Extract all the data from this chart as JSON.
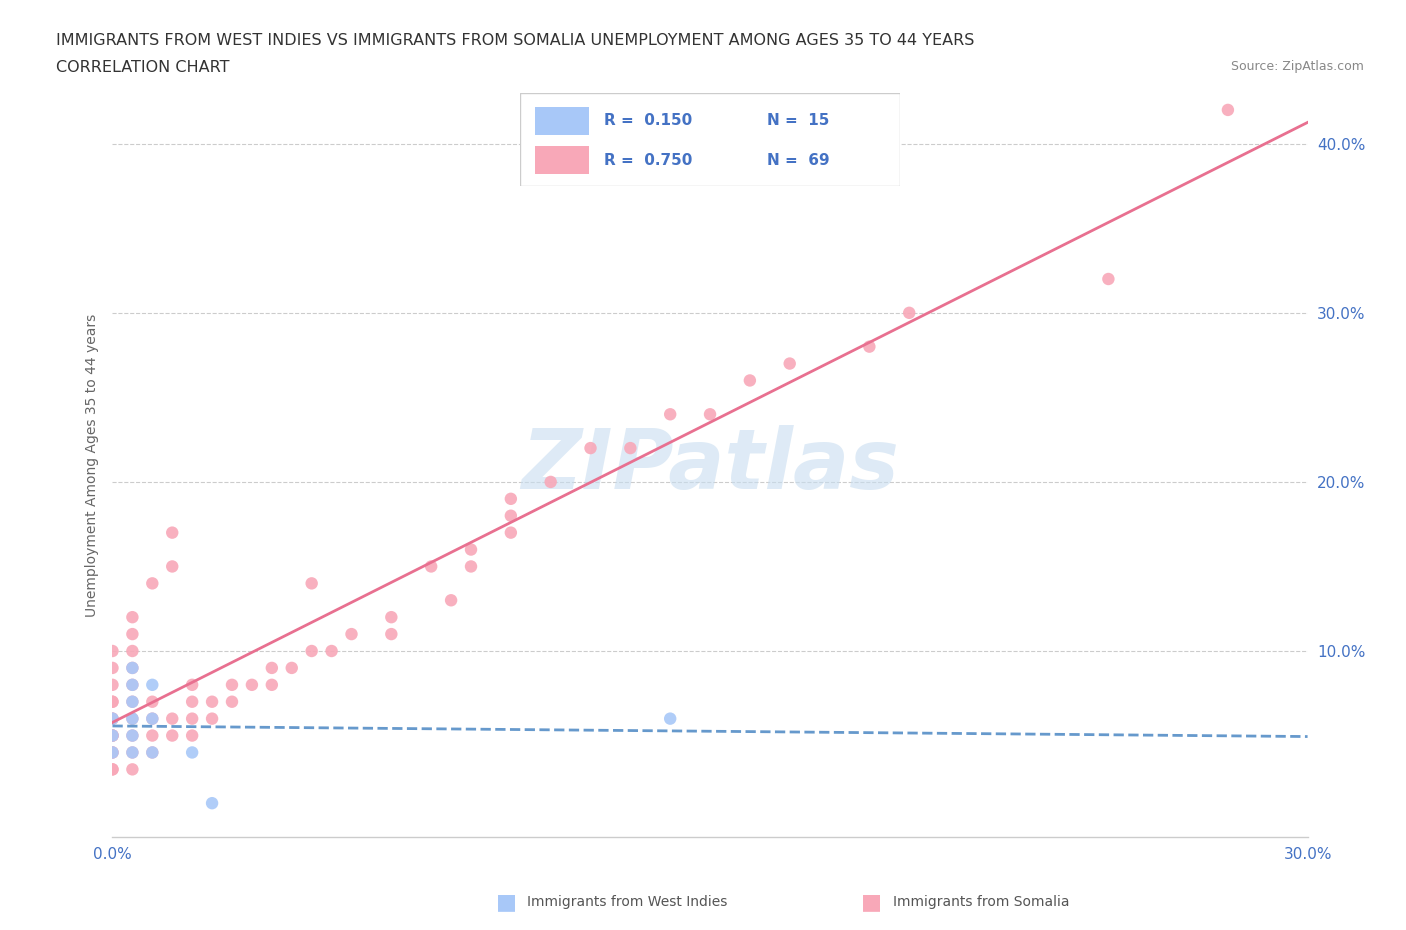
{
  "title_line1": "IMMIGRANTS FROM WEST INDIES VS IMMIGRANTS FROM SOMALIA UNEMPLOYMENT AMONG AGES 35 TO 44 YEARS",
  "title_line2": "CORRELATION CHART",
  "source_text": "Source: ZipAtlas.com",
  "ylabel": "Unemployment Among Ages 35 to 44 years",
  "xlim": [
    0.0,
    0.3
  ],
  "ylim": [
    -0.01,
    0.43
  ],
  "yticks": [
    0.0,
    0.1,
    0.2,
    0.3,
    0.4
  ],
  "ytick_labels": [
    "",
    "10.0%",
    "20.0%",
    "30.0%",
    "40.0%"
  ],
  "xticks": [
    0.0,
    0.05,
    0.1,
    0.15,
    0.2,
    0.25,
    0.3
  ],
  "xtick_labels": [
    "0.0%",
    "",
    "",
    "",
    "",
    "",
    "30.0%"
  ],
  "color_west_indies": "#a8c8f8",
  "color_somalia": "#f8a8b8",
  "color_line_west_indies": "#6699cc",
  "color_line_somalia": "#e87090",
  "legend_r_west": "0.150",
  "legend_n_west": "15",
  "legend_r_somalia": "0.750",
  "legend_n_somalia": "69",
  "watermark": "ZIPatlas",
  "watermark_color": "#c8ddf0",
  "west_indies_x": [
    0.0,
    0.0,
    0.0,
    0.005,
    0.005,
    0.005,
    0.005,
    0.005,
    0.005,
    0.01,
    0.01,
    0.01,
    0.02,
    0.025,
    0.14
  ],
  "west_indies_y": [
    0.04,
    0.05,
    0.06,
    0.04,
    0.05,
    0.06,
    0.07,
    0.08,
    0.09,
    0.04,
    0.06,
    0.08,
    0.04,
    0.01,
    0.06
  ],
  "somalia_x": [
    0.0,
    0.0,
    0.0,
    0.0,
    0.0,
    0.0,
    0.0,
    0.0,
    0.0,
    0.0,
    0.0,
    0.0,
    0.0,
    0.0,
    0.005,
    0.005,
    0.005,
    0.005,
    0.005,
    0.005,
    0.005,
    0.005,
    0.005,
    0.005,
    0.01,
    0.01,
    0.01,
    0.01,
    0.01,
    0.015,
    0.015,
    0.015,
    0.015,
    0.02,
    0.02,
    0.02,
    0.02,
    0.025,
    0.025,
    0.03,
    0.03,
    0.035,
    0.04,
    0.04,
    0.045,
    0.05,
    0.05,
    0.055,
    0.06,
    0.07,
    0.07,
    0.08,
    0.085,
    0.09,
    0.09,
    0.1,
    0.1,
    0.1,
    0.11,
    0.12,
    0.13,
    0.14,
    0.15,
    0.16,
    0.17,
    0.19,
    0.2,
    0.25,
    0.28
  ],
  "somalia_y": [
    0.03,
    0.03,
    0.04,
    0.04,
    0.05,
    0.05,
    0.05,
    0.06,
    0.06,
    0.07,
    0.07,
    0.08,
    0.09,
    0.1,
    0.03,
    0.04,
    0.05,
    0.06,
    0.07,
    0.08,
    0.09,
    0.1,
    0.11,
    0.12,
    0.04,
    0.05,
    0.06,
    0.07,
    0.14,
    0.05,
    0.06,
    0.15,
    0.17,
    0.05,
    0.06,
    0.07,
    0.08,
    0.06,
    0.07,
    0.07,
    0.08,
    0.08,
    0.08,
    0.09,
    0.09,
    0.1,
    0.14,
    0.1,
    0.11,
    0.11,
    0.12,
    0.15,
    0.13,
    0.15,
    0.16,
    0.17,
    0.18,
    0.19,
    0.2,
    0.22,
    0.22,
    0.24,
    0.24,
    0.26,
    0.27,
    0.28,
    0.3,
    0.32,
    0.42
  ]
}
